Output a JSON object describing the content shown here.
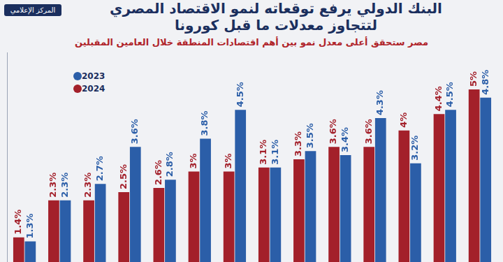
{
  "chart_data": {
    "type": "bar",
    "title": "البنك الدولي يرفع توقعاته لنمو الاقتصاد المصري\nلتتجاوز معدلات ما قبل كورونا",
    "subtitle": "مصر ستحقق أعلى معدل نمو بين أهم اقتصادات المنطقة خلال العامين المقبلين",
    "annotations": [
      "المركز الإعلامي"
    ],
    "categories": [
      null,
      null,
      null,
      null,
      null,
      null,
      null,
      null,
      null,
      null,
      null,
      null,
      null,
      null
    ],
    "series": [
      {
        "name": "2023",
        "color": "#2b5ea8",
        "values": [
          1.3,
          2.3,
          2.7,
          3.6,
          2.8,
          3.8,
          4.5,
          3.1,
          3.5,
          3.4,
          4.3,
          3.2,
          4.5,
          4.8
        ],
        "value_labels": [
          "1.3%",
          "2.3%",
          "2.7%",
          "3.6%",
          "2.8%",
          "3.8%",
          "4.5%",
          "3.1%",
          "3.5%",
          "3.4%",
          "4.3%",
          "3.2%",
          "4.5%",
          "4.8%"
        ]
      },
      {
        "name": "2024",
        "color": "#a3202a",
        "values": [
          1.4,
          2.3,
          2.3,
          2.5,
          2.6,
          3,
          3,
          3.1,
          3.3,
          3.6,
          3.6,
          4,
          4.4,
          5
        ],
        "value_labels": [
          "1.4%",
          "2.3%",
          "2.3%",
          "2.5%",
          "2.6%",
          "3%",
          "3%",
          "3.1%",
          "3.3%",
          "3.6%",
          "3.6%",
          "4%",
          "4.4%",
          "5%"
        ]
      }
    ],
    "ylim": [
      0.8,
      5.9
    ],
    "grid": false,
    "legend": "top-left",
    "data_labels": true,
    "tick_labels": false
  }
}
